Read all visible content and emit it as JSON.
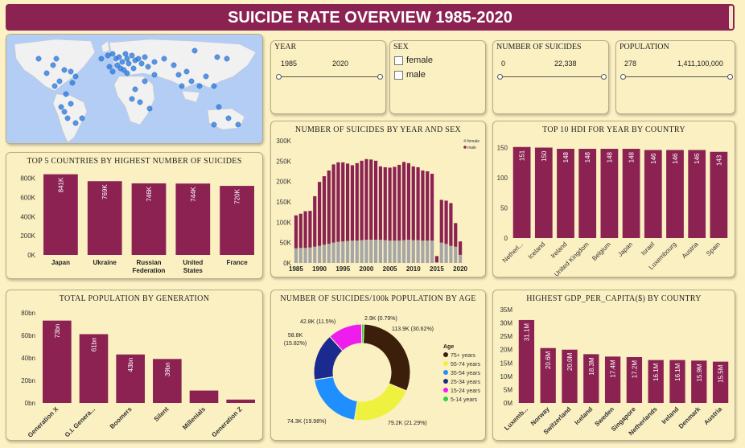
{
  "header": {
    "title": "SUICIDE RATE OVERVIEW 1985-2020"
  },
  "colors": {
    "bar": "#8b2252",
    "female": "#a6a6a6",
    "male": "#8b2252",
    "panel": "#fbf0c2",
    "map_water": "#b4cdf5",
    "map_land": "#f1f1f1",
    "map_dot": "#2f7de1"
  },
  "slicers": {
    "year": {
      "title": "YEAR",
      "min": "1985",
      "max": "2020"
    },
    "sex": {
      "title": "SEX",
      "options": [
        "female",
        "male"
      ]
    },
    "suicides": {
      "title": "NUMBER OF SUICIDES",
      "min": "0",
      "max": "22,338"
    },
    "population": {
      "title": "POPULATION",
      "min": "278",
      "max": "1,411,100,000"
    }
  },
  "chart_data": [
    {
      "id": "top5",
      "type": "bar",
      "title": "TOP 5 COUNTRIES BY HIGHEST NUMBER OF SUICIDES",
      "categories": [
        "Japan",
        "Ukraine",
        "Russian Federation",
        "United States",
        "France"
      ],
      "category_lines": [
        [
          "Japan"
        ],
        [
          "Ukraine"
        ],
        [
          "Russian",
          "Federation"
        ],
        [
          "United",
          "States"
        ],
        [
          "France"
        ]
      ],
      "values": [
        841000,
        769000,
        746000,
        744000,
        720000
      ],
      "data_labels": [
        "841K",
        "769K",
        "746K",
        "744K",
        "720K"
      ],
      "yticks": [
        0,
        200000,
        400000,
        600000,
        800000
      ],
      "ytick_labels": [
        "0K",
        "200K",
        "400K",
        "600K",
        "800K"
      ],
      "ylim": [
        0,
        880000
      ]
    },
    {
      "id": "byyear",
      "type": "bar",
      "stacked": true,
      "title": "NUMBER OF SUICIDES BY YEAR AND SEX",
      "x": [
        1985,
        1986,
        1987,
        1988,
        1989,
        1990,
        1991,
        1992,
        1993,
        1994,
        1995,
        1996,
        1997,
        1998,
        1999,
        2000,
        2001,
        2002,
        2003,
        2004,
        2005,
        2006,
        2007,
        2008,
        2009,
        2010,
        2011,
        2012,
        2013,
        2014,
        2015,
        2016,
        2017,
        2018,
        2019,
        2020
      ],
      "series": [
        {
          "name": "female",
          "values": [
            36000,
            37000,
            37000,
            38000,
            40000,
            42000,
            45000,
            47000,
            50000,
            52000,
            53000,
            54000,
            55000,
            55000,
            56000,
            57000,
            57000,
            57000,
            57000,
            56000,
            55000,
            55000,
            55000,
            56000,
            57000,
            56000,
            56000,
            55000,
            55000,
            55000,
            2000,
            50000,
            47000,
            42000,
            40000,
            20000
          ]
        },
        {
          "name": "male",
          "values": [
            81000,
            84000,
            90000,
            90000,
            124000,
            157000,
            168000,
            180000,
            192000,
            195000,
            194000,
            190000,
            185000,
            190000,
            195000,
            198000,
            197000,
            194000,
            180000,
            179000,
            179000,
            181000,
            186000,
            192000,
            188000,
            181000,
            179000,
            172000,
            170000,
            164000,
            15000,
            105000,
            106000,
            105000,
            58000,
            33000
          ]
        }
      ],
      "legend": [
        "female",
        "male"
      ],
      "xticks": [
        1985,
        1990,
        1995,
        2000,
        2005,
        2010,
        2015,
        2020
      ],
      "yticks": [
        0,
        50000,
        100000,
        150000,
        200000,
        250000,
        300000
      ],
      "ytick_labels": [
        "0K",
        "50K",
        "100K",
        "150K",
        "200K",
        "250K",
        "300K"
      ],
      "ylim": [
        0,
        300000
      ]
    },
    {
      "id": "hdi",
      "type": "bar",
      "title": "TOP 10 HDI FOR YEAR BY COUNTRY",
      "categories": [
        "Netherl...",
        "Iceland",
        "Ireland",
        "United Kingdom",
        "Belgium",
        "Japan",
        "Israel",
        "Luxembourg",
        "Austria",
        "Spain"
      ],
      "values": [
        151,
        150,
        148,
        148,
        148,
        148,
        146,
        146,
        146,
        143
      ],
      "data_labels": [
        "151",
        "150",
        "148",
        "148",
        "148",
        "148",
        "146",
        "146",
        "146",
        "143"
      ],
      "yticks": [
        0,
        50,
        100,
        150
      ],
      "ylim": [
        0,
        160
      ]
    },
    {
      "id": "generation",
      "type": "bar",
      "title": "TOTAL POPULATION BY GENERATION",
      "categories": [
        "Generation X",
        "G.I. Genera...",
        "Boomers",
        "Silent",
        "Millenials",
        "Generation Z"
      ],
      "values": [
        73,
        61,
        43,
        39,
        11,
        3
      ],
      "data_labels": [
        "73bn",
        "61bn",
        "43bn",
        "39bn",
        "",
        ""
      ],
      "yticks": [
        0,
        20,
        40,
        60,
        80
      ],
      "ytick_labels": [
        "0bn",
        "20bn",
        "40bn",
        "60bn",
        "80bn"
      ],
      "ylim": [
        0,
        82
      ]
    },
    {
      "id": "age",
      "type": "pie",
      "donut": true,
      "title": "NUMBER OF SUICIDES/100k POPULATION BY AGE",
      "legend_title": "Age",
      "labels": [
        "75+ years",
        "55-74 years",
        "35-54 years",
        "25-34 years",
        "15-24 years",
        "5-14 years"
      ],
      "values": [
        113.9,
        79.2,
        74.3,
        58.8,
        42.8,
        2.9
      ],
      "data_labels": [
        "113.9K (30.62%)",
        "79.2K (21.29%)",
        "74.3K (19.98%)",
        "58.8K (15.82%)",
        "42.8K (11.5%)",
        "2.9K (0.79%)"
      ],
      "slice_colors": [
        "#3b1f0b",
        "#eef23f",
        "#1f8fff",
        "#1b2a8f",
        "#ee1ded",
        "#2bd63a"
      ]
    },
    {
      "id": "gdp",
      "type": "bar",
      "title": "HIGHEST GDP_PER_CAPITA($) BY COUNTRY",
      "categories": [
        "Luxemb...",
        "Norway",
        "Switzerland",
        "Iceland",
        "Sweden",
        "Singapore",
        "Netherlands",
        "Ireland",
        "Denmark",
        "Austria"
      ],
      "values": [
        31.1,
        20.6,
        20.0,
        18.3,
        17.4,
        17.2,
        16.1,
        16.1,
        15.9,
        15.5
      ],
      "data_labels": [
        "31.1M",
        "20.6M",
        "20.0M",
        "18.3M",
        "17.4M",
        "17.2M",
        "16.1M",
        "16.1M",
        "15.9M",
        "15.5M"
      ],
      "yticks": [
        0,
        5,
        10,
        15,
        20,
        25,
        30,
        35
      ],
      "ytick_labels": [
        "0M",
        "5M",
        "10M",
        "15M",
        "20M",
        "25M",
        "30M",
        "35M"
      ],
      "ylim": [
        0,
        35
      ]
    }
  ]
}
